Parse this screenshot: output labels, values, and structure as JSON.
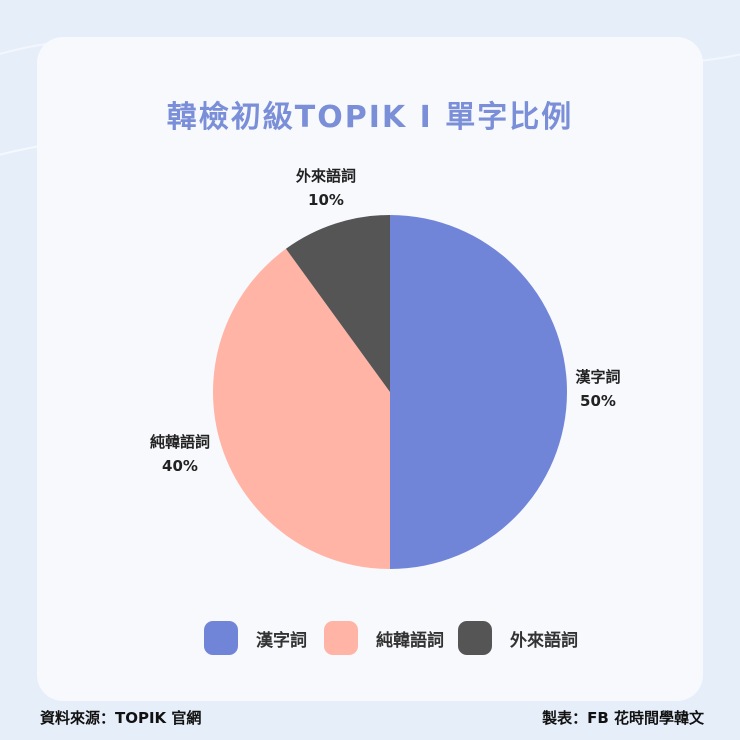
{
  "chart_data": {
    "type": "pie",
    "title": "韓檢初級TOPIK I 單字比例",
    "categories": [
      "漢字詞",
      "純韓語詞",
      "外來語詞"
    ],
    "values": [
      50,
      40,
      10
    ],
    "value_labels": [
      "50%",
      "40%",
      "10%"
    ],
    "colors": [
      "#7085d8",
      "#ffb4a6",
      "#555555"
    ],
    "legend_position": "bottom"
  },
  "legend": [
    {
      "label": "漢字詞",
      "color": "#7085d8"
    },
    {
      "label": "純韓語詞",
      "color": "#ffb4a6"
    },
    {
      "label": "外來語詞",
      "color": "#555555"
    }
  ],
  "footer": {
    "source": "資料來源：TOPIK 官網",
    "credit": "製表：FB 花時間學韓文"
  }
}
